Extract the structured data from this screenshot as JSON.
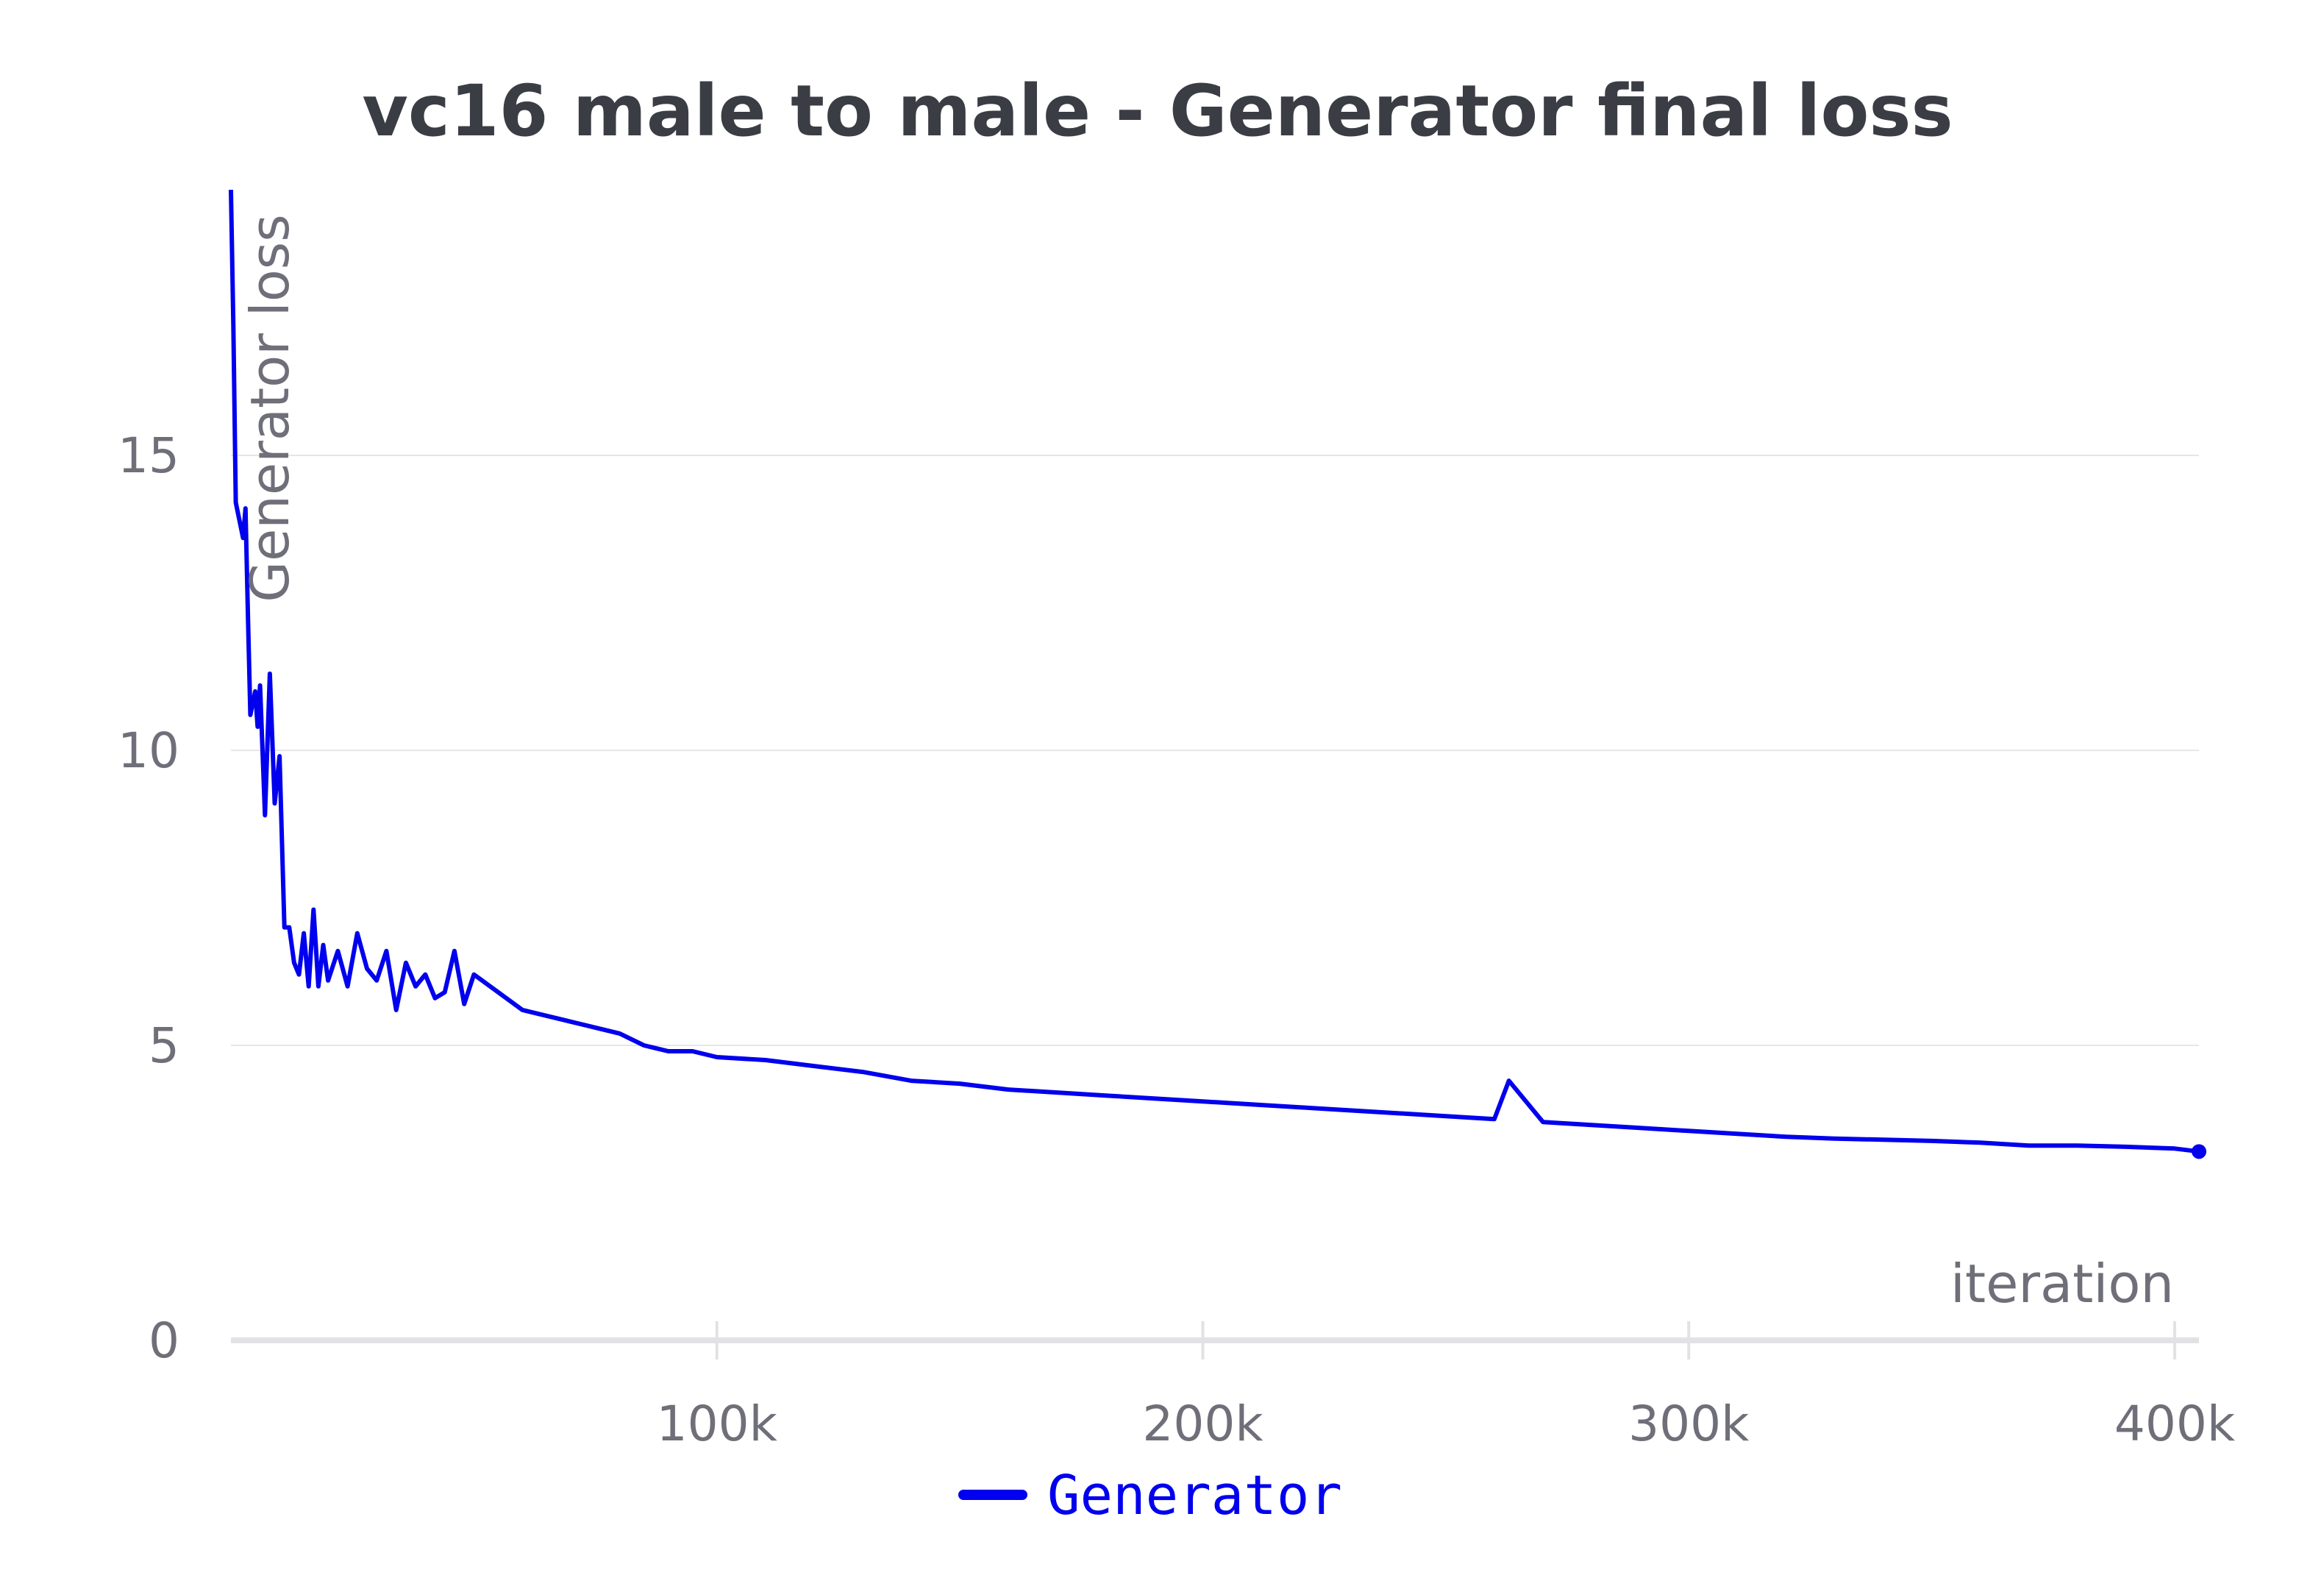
{
  "chart_data": {
    "type": "line",
    "title": "vc16 male to male - Generator final loss",
    "xlabel": "iteration",
    "ylabel": "Generator loss",
    "xlim": [
      0,
      405000
    ],
    "ylim": [
      0,
      19.6
    ],
    "x_ticks": [
      {
        "value": 100000,
        "label": "100k"
      },
      {
        "value": 200000,
        "label": "200k"
      },
      {
        "value": 300000,
        "label": "300k"
      },
      {
        "value": 400000,
        "label": "400k"
      }
    ],
    "y_ticks": [
      {
        "value": 0,
        "label": "0"
      },
      {
        "value": 5,
        "label": "5"
      },
      {
        "value": 10,
        "label": "10"
      },
      {
        "value": 15,
        "label": "15"
      }
    ],
    "grid": true,
    "legend_position": "bottom-center",
    "series": [
      {
        "name": "Generator",
        "color": "#0000ee",
        "x": [
          0,
          500,
          1000,
          1500,
          2000,
          2500,
          3000,
          3500,
          4000,
          5000,
          5500,
          6000,
          7000,
          8000,
          9000,
          10000,
          11000,
          12000,
          13000,
          14000,
          15000,
          16000,
          17000,
          18000,
          19000,
          20000,
          22000,
          24000,
          26000,
          28000,
          30000,
          32000,
          34000,
          36000,
          38000,
          40000,
          42000,
          44000,
          46000,
          48000,
          50000,
          55000,
          60000,
          65000,
          70000,
          75000,
          80000,
          85000,
          90000,
          95000,
          100000,
          110000,
          120000,
          130000,
          140000,
          150000,
          160000,
          170000,
          180000,
          190000,
          200000,
          210000,
          220000,
          230000,
          240000,
          250000,
          260000,
          263000,
          270000,
          280000,
          290000,
          300000,
          310000,
          320000,
          330000,
          340000,
          350000,
          360000,
          370000,
          380000,
          390000,
          400000,
          405000
        ],
        "y": [
          19.5,
          17.2,
          14.2,
          14.0,
          13.8,
          13.6,
          14.1,
          12.3,
          10.6,
          11.0,
          10.4,
          11.1,
          8.9,
          11.3,
          9.1,
          9.9,
          7.0,
          7.0,
          6.4,
          6.2,
          6.9,
          6.0,
          7.3,
          6.0,
          6.7,
          6.1,
          6.6,
          6.0,
          6.9,
          6.3,
          6.1,
          6.6,
          5.6,
          6.4,
          6.0,
          6.2,
          5.8,
          5.9,
          6.6,
          5.7,
          6.2,
          5.9,
          5.6,
          5.5,
          5.4,
          5.3,
          5.2,
          5.0,
          4.9,
          4.9,
          4.8,
          4.75,
          4.65,
          4.55,
          4.4,
          4.35,
          4.25,
          4.2,
          4.15,
          4.1,
          4.05,
          4.0,
          3.95,
          3.9,
          3.85,
          3.8,
          3.75,
          4.4,
          3.7,
          3.65,
          3.6,
          3.55,
          3.5,
          3.45,
          3.42,
          3.4,
          3.38,
          3.35,
          3.3,
          3.3,
          3.28,
          3.25,
          3.2
        ]
      }
    ]
  }
}
